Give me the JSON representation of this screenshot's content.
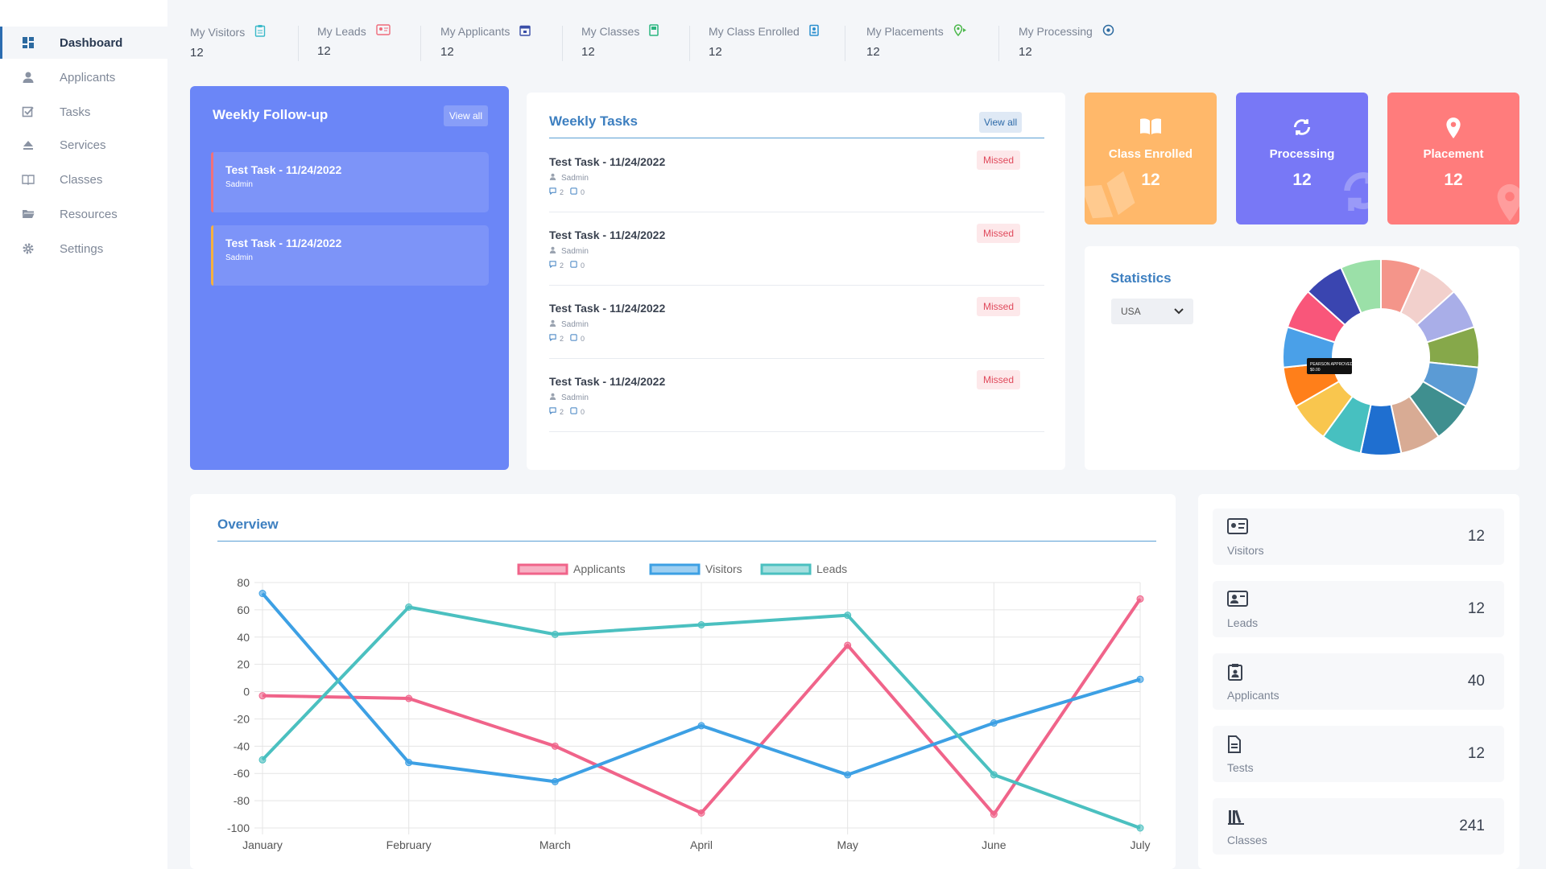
{
  "sidebar": {
    "items": [
      {
        "label": "Dashboard",
        "icon": "dashboard-icon",
        "active": true
      },
      {
        "label": "Applicants",
        "icon": "person-icon"
      },
      {
        "label": "Tasks",
        "icon": "checkbox-icon"
      },
      {
        "label": "Services",
        "icon": "eject-icon"
      },
      {
        "label": "Classes",
        "icon": "book-icon"
      },
      {
        "label": "Resources",
        "icon": "folder-icon"
      },
      {
        "label": "Settings",
        "icon": "gear-icon"
      }
    ]
  },
  "top_stats": [
    {
      "label": "My Visitors",
      "value": "12",
      "icon": "clipboard-icon",
      "color": "#3bb9c9"
    },
    {
      "label": "My Leads",
      "value": "12",
      "icon": "contact-card-icon",
      "color": "#ef6a7a"
    },
    {
      "label": "My Applicants",
      "value": "12",
      "icon": "calendar-icon",
      "color": "#3a4fa8"
    },
    {
      "label": "My Classes",
      "value": "12",
      "icon": "book-icon",
      "color": "#2bb580"
    },
    {
      "label": "My Class Enrolled",
      "value": "12",
      "icon": "badge-icon",
      "color": "#2a8fcf"
    },
    {
      "label": "My Placements",
      "value": "12",
      "icon": "location-icon",
      "color": "#4cb84c"
    },
    {
      "label": "My Processing",
      "value": "12",
      "icon": "target-icon",
      "color": "#2c6aa0"
    }
  ],
  "followup": {
    "title": "Weekly Follow-up",
    "view_all": "View all",
    "items": [
      {
        "title": "Test Task - 11/24/2022",
        "author": "Sadmin",
        "bar_color": "#f0717a"
      },
      {
        "title": "Test Task - 11/24/2022",
        "author": "Sadmin",
        "bar_color": "#f5b041"
      }
    ]
  },
  "weekly_tasks": {
    "title": "Weekly Tasks",
    "view_all": "View all",
    "items": [
      {
        "title": "Test Task - 11/24/2022",
        "author": "Sadmin",
        "comments": "2",
        "files": "0",
        "status": "Missed"
      },
      {
        "title": "Test Task - 11/24/2022",
        "author": "Sadmin",
        "comments": "2",
        "files": "0",
        "status": "Missed"
      },
      {
        "title": "Test Task - 11/24/2022",
        "author": "Sadmin",
        "comments": "2",
        "files": "0",
        "status": "Missed"
      },
      {
        "title": "Test Task - 11/24/2022",
        "author": "Sadmin",
        "comments": "2",
        "files": "0",
        "status": "Missed"
      }
    ]
  },
  "tiles": [
    {
      "label": "Class Enrolled",
      "value": "12",
      "icon": "open-book-icon",
      "color": "#ffb86a"
    },
    {
      "label": "Processing",
      "value": "12",
      "icon": "refresh-icon",
      "color": "#7878f6"
    },
    {
      "label": "Placement",
      "value": "12",
      "icon": "location-pin-icon",
      "color": "#ff7c7c"
    }
  ],
  "statistics": {
    "title": "Statistics",
    "country": "USA",
    "tooltip_label": "PEARSON APPROVED",
    "tooltip_value": "$0.00",
    "slice_colors": [
      "#f4958a",
      "#f2d0cc",
      "#a9aee8",
      "#86a84a",
      "#5b9bd5",
      "#3f8f8f",
      "#d8ab94",
      "#1f6fd0",
      "#47c0c0",
      "#f9c64e",
      "#ff7f1a",
      "#4aa0e8",
      "#f9567a",
      "#3a45b0",
      "#9be0a8"
    ]
  },
  "overview": {
    "title": "Overview",
    "chart_data": {
      "type": "line",
      "categories": [
        "January",
        "February",
        "March",
        "April",
        "May",
        "June",
        "July"
      ],
      "series": [
        {
          "name": "Applicants",
          "color": "#f0648a",
          "values": [
            -3,
            -5,
            -40,
            -89,
            34,
            -90,
            68
          ]
        },
        {
          "name": "Visitors",
          "color": "#3da0e4",
          "values": [
            72,
            -52,
            -66,
            -25,
            -61,
            -23,
            9
          ]
        },
        {
          "name": "Leads",
          "color": "#4bc0c0",
          "values": [
            -50,
            62,
            42,
            49,
            56,
            -61,
            -100
          ]
        }
      ],
      "ylim": [
        -100,
        80
      ],
      "yticks": [
        80,
        60,
        40,
        20,
        0,
        -20,
        -40,
        -60,
        -80,
        -100
      ],
      "grid": true,
      "legend": "top"
    }
  },
  "totals": [
    {
      "label": "Visitors",
      "value": "12",
      "icon": "id-card-icon"
    },
    {
      "label": "Leads",
      "value": "12",
      "icon": "contact-card-icon"
    },
    {
      "label": "Applicants",
      "value": "40",
      "icon": "clipboard-person-icon"
    },
    {
      "label": "Tests",
      "value": "12",
      "icon": "document-icon"
    },
    {
      "label": "Classes",
      "value": "241",
      "icon": "library-icon"
    }
  ]
}
